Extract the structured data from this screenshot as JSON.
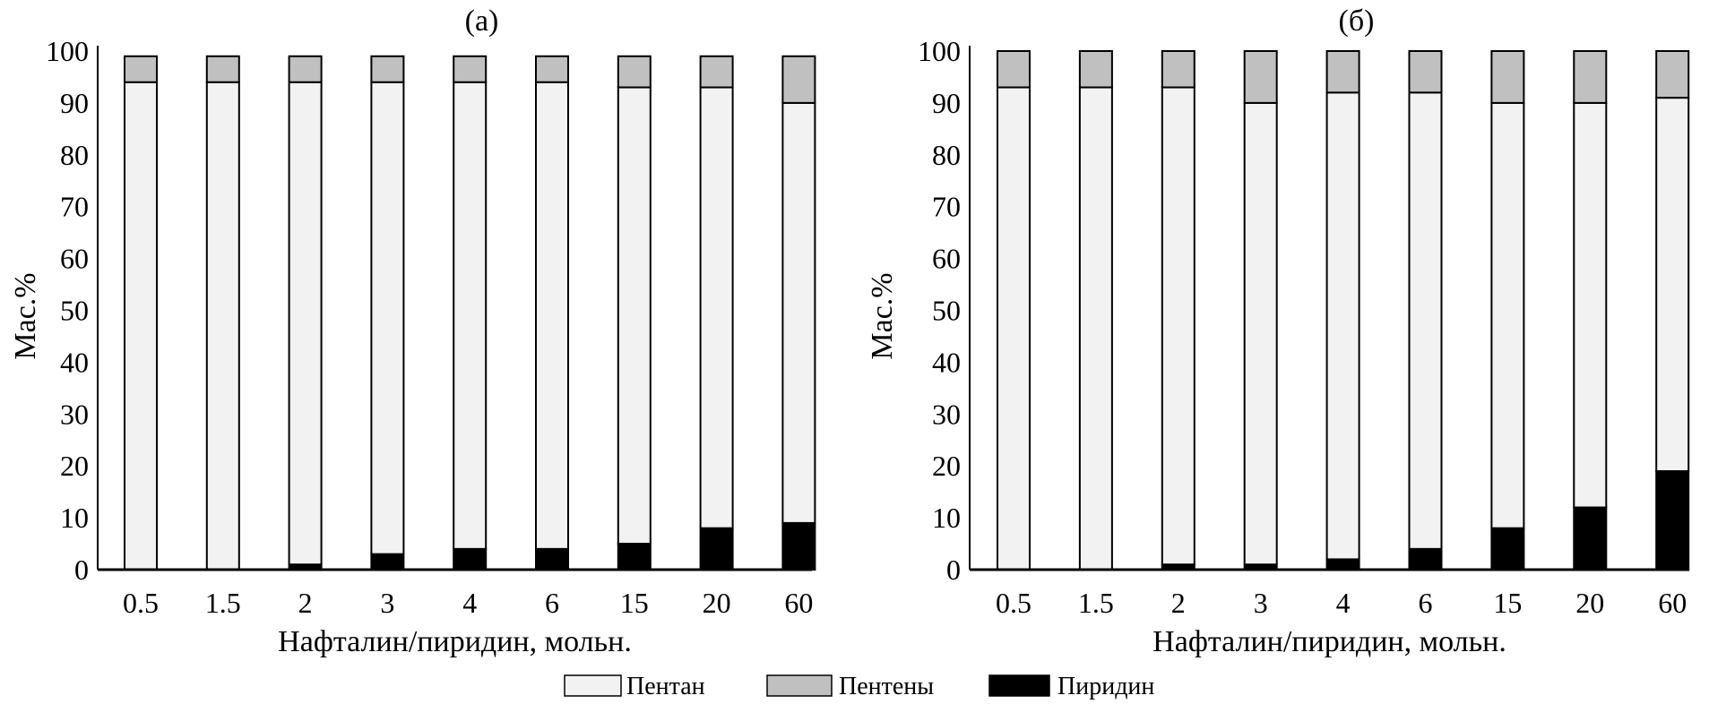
{
  "colors": {
    "pentane": "#f2f2f2",
    "pentenes": "#c0c0c0",
    "pyridine": "#000000",
    "outline": "#000000"
  },
  "legend": [
    {
      "key": "pentane",
      "label": "Пентан"
    },
    {
      "key": "pentenes",
      "label": "Пентены"
    },
    {
      "key": "pyridine",
      "label": "Пиридин"
    }
  ],
  "chart_data": [
    {
      "type": "bar",
      "stacked": true,
      "title": "(a)",
      "xlabel": "Нафталин/пиридин, мольн.",
      "ylabel": "Мас.%",
      "ylim": [
        0,
        100
      ],
      "yticks": [
        "0",
        "10",
        "20",
        "30",
        "40",
        "50",
        "60",
        "70",
        "80",
        "90",
        "100"
      ],
      "categories": [
        "0.5",
        "1.5",
        "2",
        "3",
        "4",
        "6",
        "15",
        "20",
        "60"
      ],
      "series": [
        {
          "name": "Пиридин",
          "key": "pyridine",
          "values": [
            0,
            0,
            1,
            3,
            4,
            4,
            5,
            8,
            9
          ]
        },
        {
          "name": "Пентан",
          "key": "pentane",
          "values": [
            94,
            94,
            93,
            91,
            90,
            90,
            88,
            85,
            81
          ]
        },
        {
          "name": "Пентены",
          "key": "pentenes",
          "values": [
            5,
            5,
            5,
            5,
            5,
            5,
            6,
            6,
            9
          ]
        }
      ]
    },
    {
      "type": "bar",
      "stacked": true,
      "title": "(б)",
      "xlabel": "Нафталин/пиридин, мольн.",
      "ylabel": "Мас.%",
      "ylim": [
        0,
        100
      ],
      "yticks": [
        "0",
        "10",
        "20",
        "30",
        "40",
        "50",
        "60",
        "70",
        "80",
        "90",
        "100"
      ],
      "categories": [
        "0.5",
        "1.5",
        "2",
        "3",
        "4",
        "6",
        "15",
        "20",
        "60"
      ],
      "series": [
        {
          "name": "Пиридин",
          "key": "pyridine",
          "values": [
            0,
            0,
            1,
            1,
            2,
            4,
            8,
            12,
            19
          ]
        },
        {
          "name": "Пентан",
          "key": "pentane",
          "values": [
            93,
            93,
            92,
            89,
            90,
            88,
            82,
            78,
            72
          ]
        },
        {
          "name": "Пентены",
          "key": "pentenes",
          "values": [
            7,
            7,
            7,
            10,
            8,
            8,
            10,
            10,
            9
          ]
        }
      ]
    }
  ]
}
